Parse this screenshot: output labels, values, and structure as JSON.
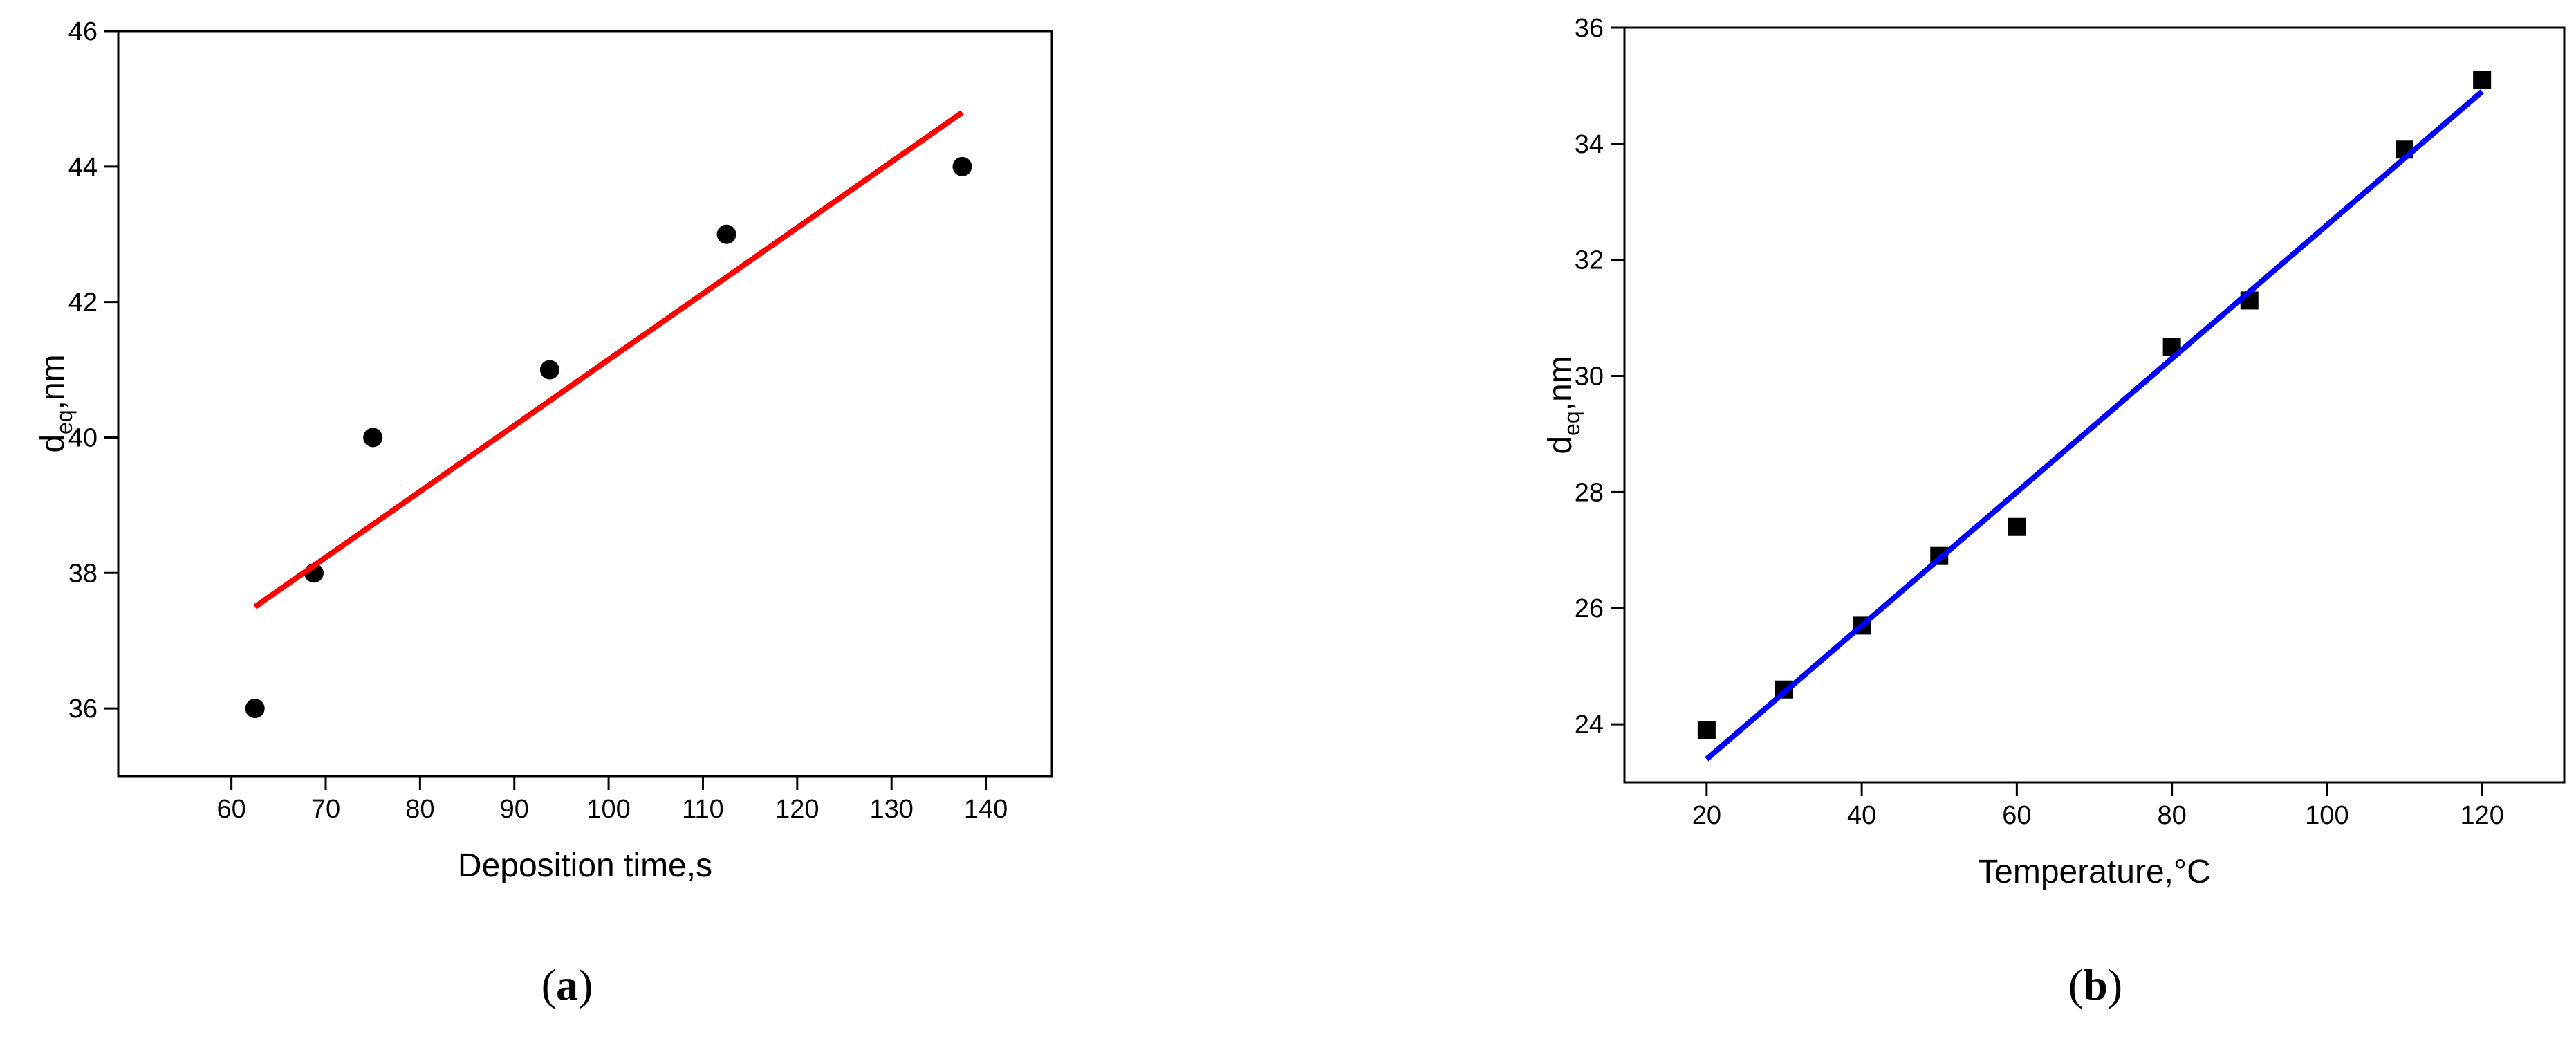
{
  "chart_data": [
    {
      "type": "scatter",
      "xlabel": "Deposition time,s",
      "ylabel": [
        "d",
        "eq",
        ",nm"
      ],
      "panel_label": [
        "(",
        "a",
        ")"
      ],
      "xlim": [
        48,
        147
      ],
      "xticks": [
        60,
        70,
        80,
        90,
        100,
        110,
        120,
        130,
        140
      ],
      "ylim": [
        35,
        46
      ],
      "yticks": [
        36,
        38,
        40,
        42,
        44,
        46
      ],
      "series": [
        {
          "style": "marker",
          "marker": "circle",
          "color": "#000000",
          "x": [
            62.5,
            68.75,
            75,
            93.75,
            112.5,
            137.5
          ],
          "values": [
            36,
            38,
            40,
            41,
            43,
            44
          ]
        },
        {
          "style": "line",
          "color": "#ff0000",
          "x": [
            62.5,
            137.5
          ],
          "values": [
            37.5,
            44.8
          ]
        }
      ]
    },
    {
      "type": "scatter",
      "xlabel": "Temperature,°C",
      "ylabel": [
        "d",
        "eq",
        ",nm"
      ],
      "panel_label": [
        "(",
        "b",
        ")"
      ],
      "xlim": [
        9.4,
        130.6
      ],
      "xticks": [
        20,
        40,
        60,
        80,
        100,
        120
      ],
      "ylim": [
        23,
        36
      ],
      "yticks": [
        24,
        26,
        28,
        30,
        32,
        34,
        36
      ],
      "series": [
        {
          "style": "marker",
          "marker": "square",
          "color": "#000000",
          "x": [
            20,
            30,
            40,
            50,
            60,
            80,
            90,
            110,
            120
          ],
          "values": [
            23.9,
            24.6,
            25.7,
            26.9,
            27.4,
            30.5,
            31.3,
            33.9,
            35.1
          ]
        },
        {
          "style": "line",
          "color": "#0000ff",
          "x": [
            20,
            120
          ],
          "values": [
            23.4,
            34.9
          ]
        }
      ]
    }
  ]
}
